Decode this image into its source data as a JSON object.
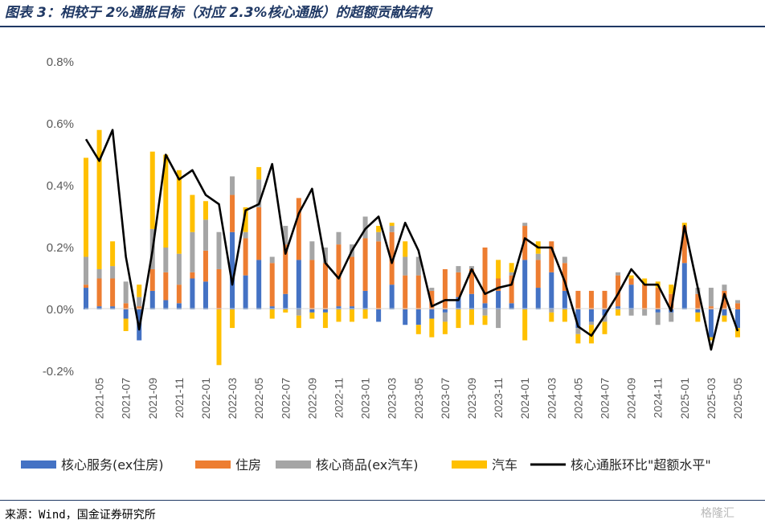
{
  "header": {
    "title": "图表 3：相较于 2%通胀目标（对应 2.3%核心通胀）的超额贡献结构"
  },
  "footer": {
    "source": "来源：Wind，国金证券研究所",
    "watermark": "格隆汇"
  },
  "colors": {
    "services": "#4472c4",
    "housing": "#ed7d31",
    "goods": "#a5a5a5",
    "autos": "#ffc000",
    "line": "#000000",
    "title": "#1f3864"
  },
  "chart_data": {
    "type": "bar",
    "stacked": true,
    "title": "",
    "xlabel": "",
    "ylabel": "",
    "ylim": [
      -0.2,
      0.8
    ],
    "y_ticks": [
      "-0.2%",
      "0.0%",
      "0.2%",
      "0.4%",
      "0.6%",
      "0.8%"
    ],
    "grid": false,
    "legend_position": "bottom",
    "x_tick_labels": [
      "2021-05",
      "2021-07",
      "2021-09",
      "2021-11",
      "2022-01",
      "2022-03",
      "2022-05",
      "2022-07",
      "2022-09",
      "2022-11",
      "2023-01",
      "2023-03",
      "2023-05",
      "2023-07",
      "2023-09",
      "2023-11",
      "2024-01",
      "2024-03",
      "2024-05",
      "2024-07",
      "2024-09",
      "2024-11",
      "2025-01",
      "2025-03",
      "2025-05"
    ],
    "categories": [
      "2021-04",
      "2021-05",
      "2021-06",
      "2021-07",
      "2021-08",
      "2021-09",
      "2021-10",
      "2021-11",
      "2021-12",
      "2022-01",
      "2022-02",
      "2022-03",
      "2022-04",
      "2022-05",
      "2022-06",
      "2022-07",
      "2022-08",
      "2022-09",
      "2022-10",
      "2022-11",
      "2022-12",
      "2023-01",
      "2023-02",
      "2023-03",
      "2023-04",
      "2023-05",
      "2023-06",
      "2023-07",
      "2023-08",
      "2023-09",
      "2023-10",
      "2023-11",
      "2023-12",
      "2024-01",
      "2024-02",
      "2024-03",
      "2024-04",
      "2024-05",
      "2024-06",
      "2024-07",
      "2024-08",
      "2024-09",
      "2024-10",
      "2024-11",
      "2024-12",
      "2025-01",
      "2025-02",
      "2025-03",
      "2025-04",
      "2025-05"
    ],
    "series": [
      {
        "name": "核心服务(ex住房)",
        "values": [
          0.07,
          0.01,
          0.01,
          -0.03,
          -0.1,
          0.06,
          0.03,
          0.02,
          0.1,
          0.09,
          0.0,
          0.25,
          0.11,
          0.16,
          0.01,
          0.05,
          0.16,
          -0.01,
          -0.01,
          0.01,
          0.01,
          0.06,
          -0.04,
          0.08,
          -0.05,
          -0.05,
          -0.03,
          -0.01,
          0.04,
          0.05,
          0.02,
          0.06,
          0.02,
          0.16,
          0.07,
          0.12,
          0.06,
          -0.06,
          -0.04,
          -0.02,
          0.01,
          0.08,
          0.0,
          -0.01,
          -0.01,
          0.15,
          -0.01,
          -0.09,
          -0.02,
          -0.06
        ]
      },
      {
        "name": "住房",
        "values": [
          0.01,
          0.09,
          0.09,
          0.02,
          0.01,
          0.07,
          0.09,
          0.06,
          0.02,
          0.1,
          0.13,
          0.12,
          0.12,
          0.17,
          0.14,
          0.16,
          0.2,
          0.16,
          0.15,
          0.2,
          0.16,
          0.17,
          0.22,
          0.17,
          0.11,
          0.11,
          0.06,
          0.13,
          0.08,
          0.08,
          0.18,
          0.04,
          0.09,
          0.11,
          0.09,
          0.1,
          0.09,
          0.06,
          0.06,
          0.06,
          0.1,
          0.02,
          0.08,
          0.07,
          0.05,
          0.12,
          0.05,
          0.01,
          0.06,
          0.02
        ]
      },
      {
        "name": "核心商品(ex汽车)",
        "values": [
          0.09,
          0.03,
          0.04,
          0.07,
          0.03,
          0.13,
          0.08,
          0.1,
          0.13,
          0.1,
          0.12,
          0.06,
          0.02,
          0.09,
          0.02,
          0.06,
          -0.02,
          0.06,
          0.05,
          0.04,
          0.04,
          0.07,
          0.03,
          0.02,
          0.06,
          0.06,
          0.01,
          -0.03,
          0.02,
          0.01,
          -0.02,
          -0.06,
          0.01,
          0.01,
          0.02,
          -0.01,
          0.02,
          -0.02,
          -0.01,
          -0.02,
          0.01,
          -0.02,
          -0.02,
          -0.04,
          -0.03,
          0.0,
          0.02,
          0.06,
          0.02,
          0.01
        ]
      },
      {
        "name": "汽车",
        "values": [
          0.32,
          0.45,
          0.08,
          -0.04,
          0.04,
          0.25,
          0.3,
          0.27,
          0.12,
          0.06,
          -0.18,
          -0.06,
          0.08,
          0.04,
          -0.03,
          -0.01,
          -0.04,
          -0.02,
          -0.05,
          -0.04,
          -0.04,
          -0.03,
          0.02,
          0.01,
          0.05,
          -0.03,
          -0.06,
          -0.04,
          -0.06,
          -0.05,
          -0.03,
          0.06,
          0.03,
          -0.1,
          0.04,
          -0.03,
          -0.04,
          -0.03,
          -0.06,
          -0.04,
          -0.02,
          0.01,
          0.02,
          0.02,
          0.03,
          0.01,
          -0.03,
          -0.01,
          -0.02,
          -0.03
        ]
      },
      {
        "name": "核心通胀环比\"超额水平\"",
        "type": "line",
        "values": [
          0.55,
          0.48,
          0.58,
          0.17,
          -0.065,
          0.19,
          0.5,
          0.42,
          0.45,
          0.37,
          0.34,
          0.08,
          0.32,
          0.34,
          0.47,
          0.18,
          0.31,
          0.39,
          0.15,
          0.1,
          0.19,
          0.26,
          0.3,
          0.15,
          0.28,
          0.19,
          0.01,
          0.03,
          0.03,
          0.13,
          0.05,
          0.07,
          0.08,
          0.23,
          0.2,
          0.2,
          0.09,
          -0.055,
          -0.085,
          -0.02,
          0.05,
          0.13,
          0.08,
          0.08,
          -0.005,
          0.27,
          0.07,
          -0.13,
          0.05,
          -0.07
        ]
      }
    ]
  }
}
